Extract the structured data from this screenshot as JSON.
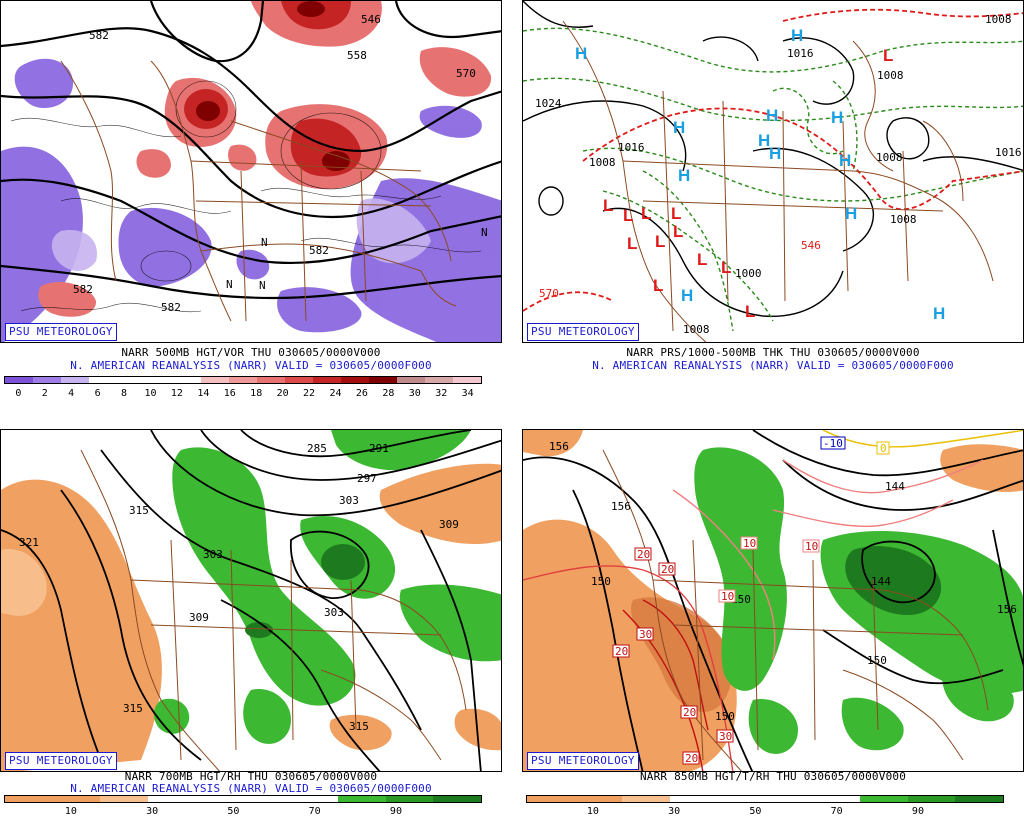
{
  "badge": "PSU METEOROLOGY",
  "panels": [
    {
      "line1": "NARR 500MB HGT/VOR THU 030605/0000V000",
      "line2": "N. AMERICAN REANALYSIS (NARR) VALID = 030605/0000F000",
      "scale_ticks": [
        "0",
        "2",
        "4",
        "6",
        "8",
        "10",
        "12",
        "14",
        "16",
        "18",
        "20",
        "22",
        "24",
        "26",
        "28",
        "30",
        "32",
        "34"
      ],
      "scale_colors": [
        "#7b52d8",
        "#9f7de6",
        "#c7b3f0",
        "#ffffff",
        "#ffffff",
        "#ffffff",
        "#ffffff",
        "#f4c0c0",
        "#ee9a9a",
        "#e77272",
        "#dc4a4a",
        "#c52424",
        "#a40e0e",
        "#7e0000",
        "#c08a8a",
        "#d6a8a8",
        "#f3c8d0"
      ],
      "labels": [
        "546",
        "558",
        "570",
        "582",
        "582",
        "582",
        "582",
        "N",
        "N",
        "N",
        "N"
      ]
    },
    {
      "line1": "NARR PRS/1000-500MB THK THU 030605/0000V000",
      "line2": "N. AMERICAN REANALYSIS (NARR) VALID = 030605/0000F000",
      "labels": [
        "1008",
        "1016",
        "1008",
        "1024",
        "1008",
        "1016",
        "1016",
        "1008",
        "1008",
        "1008",
        "1000",
        "570",
        "1008",
        "546"
      ],
      "highs": [
        "H",
        "H",
        "H",
        "H",
        "H",
        "H",
        "H",
        "H",
        "H",
        "H",
        "H",
        "H"
      ],
      "lows": [
        "L",
        "L",
        "L",
        "L",
        "L",
        "L",
        "L",
        "L",
        "L",
        "L",
        "L",
        "L"
      ]
    },
    {
      "line1": "NARR 700MB HGT/RH THU 030605/0000V000",
      "line2": "N. AMERICAN REANALYSIS (NARR) VALID = 030605/0000F000",
      "scale_ticks": [
        "10",
        "30",
        "50",
        "70",
        "90"
      ],
      "labels": [
        "285",
        "291",
        "297",
        "303",
        "303",
        "309",
        "315",
        "321",
        "309",
        "303",
        "315",
        "315"
      ]
    },
    {
      "line1": "NARR 850MB HGT/T/RH THU 030605/0000V000",
      "scale_ticks": [
        "10",
        "30",
        "50",
        "70",
        "90"
      ],
      "labels": [
        "156",
        "144",
        "150",
        "150",
        "150",
        "156",
        "144",
        "150",
        "156"
      ],
      "temps": [
        "20",
        "20",
        "20",
        "30",
        "30",
        "20",
        "20",
        "10",
        "10",
        "10",
        "-10",
        "0"
      ]
    }
  ]
}
